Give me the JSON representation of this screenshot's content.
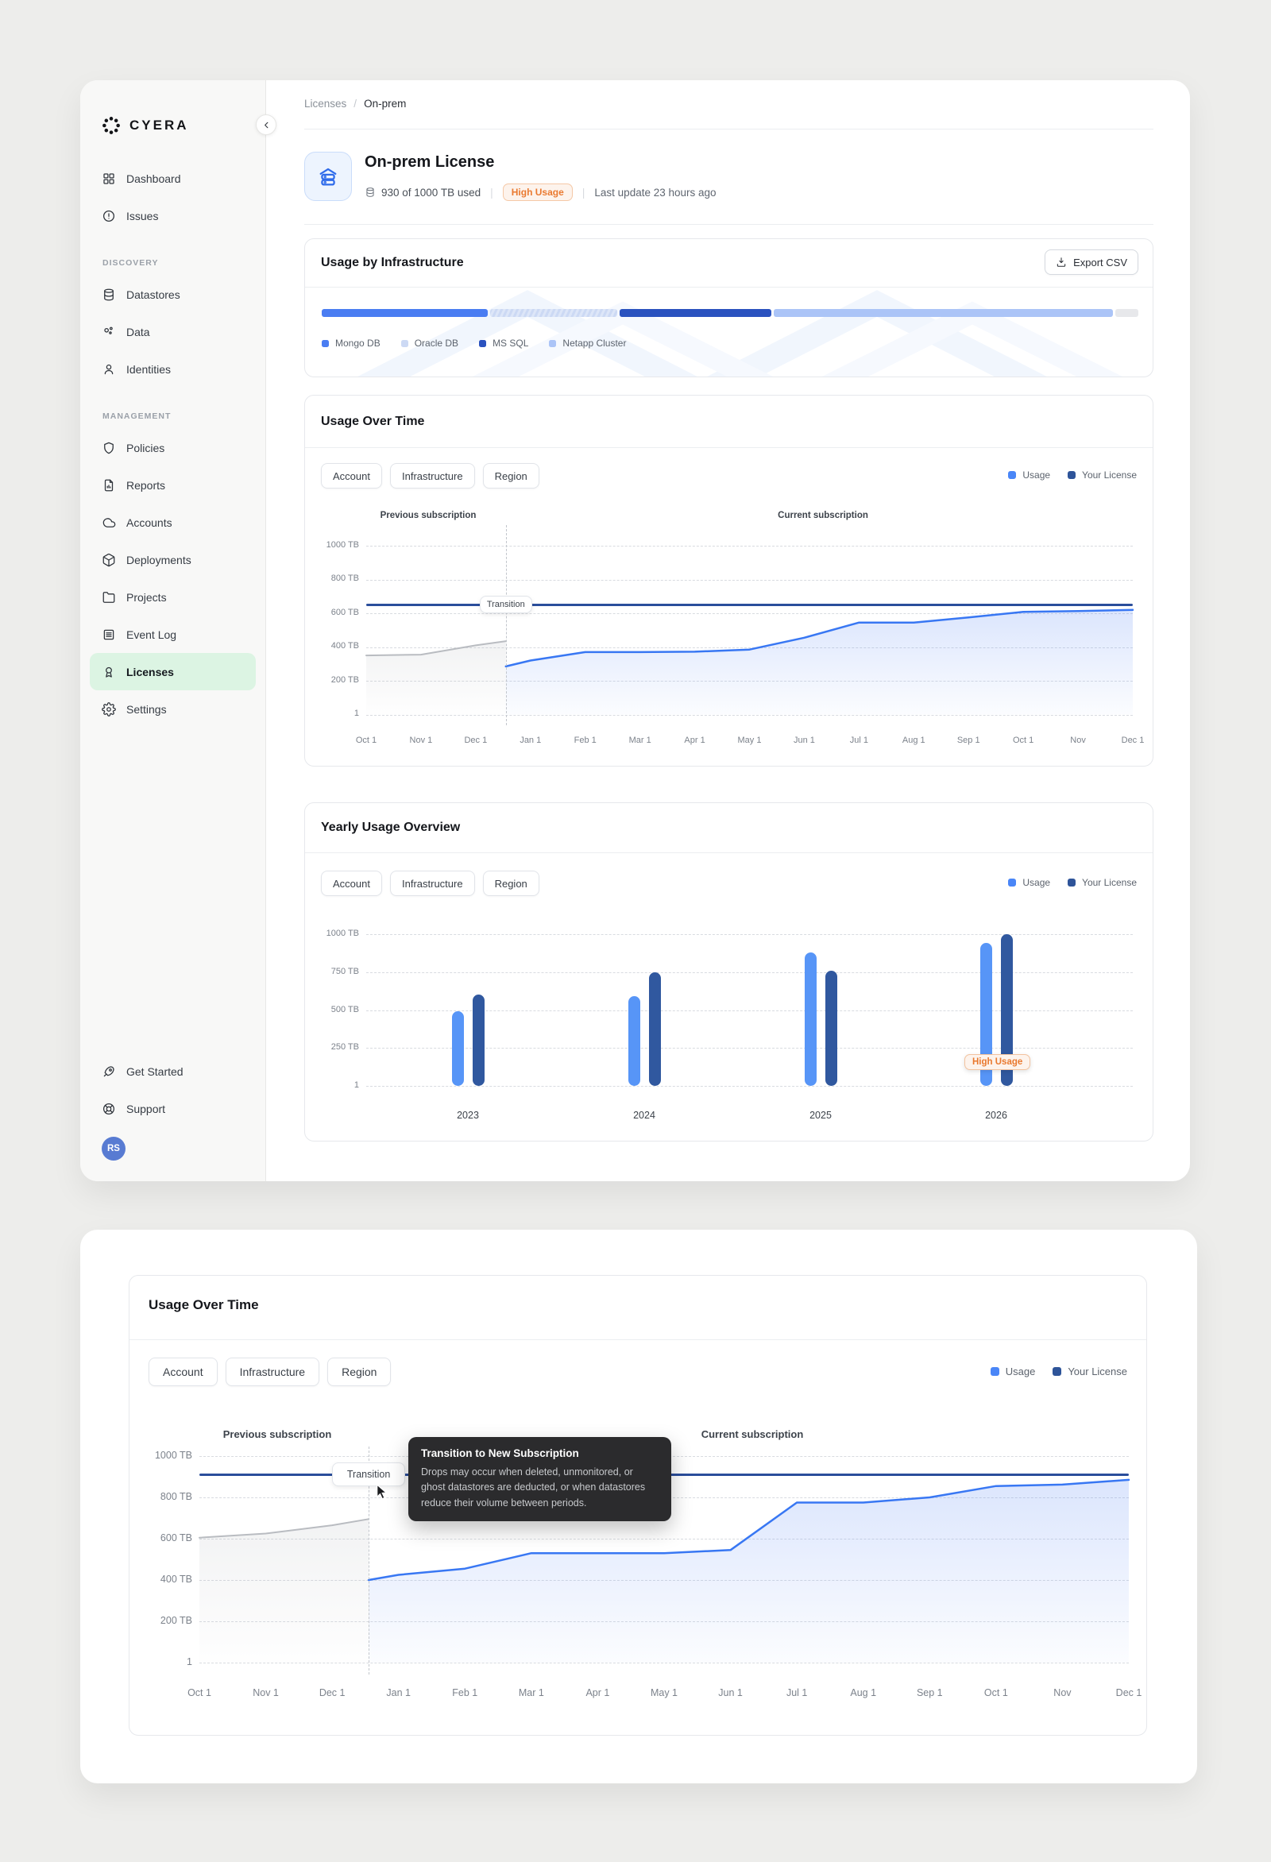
{
  "sidebar": {
    "logo_text": "CYERA",
    "sections": [
      {
        "label": "",
        "items": [
          {
            "icon": "grid-icon",
            "label": "Dashboard"
          },
          {
            "icon": "alert-circle-icon",
            "label": "Issues"
          }
        ]
      },
      {
        "label": "DISCOVERY",
        "items": [
          {
            "icon": "database-icon",
            "label": "Datastores"
          },
          {
            "icon": "scatter-icon",
            "label": "Data"
          },
          {
            "icon": "user-icon",
            "label": "Identities"
          }
        ]
      },
      {
        "label": "MANAGEMENT",
        "items": [
          {
            "icon": "shield-icon",
            "label": "Policies"
          },
          {
            "icon": "report-icon",
            "label": "Reports"
          },
          {
            "icon": "cloud-icon",
            "label": "Accounts"
          },
          {
            "icon": "cube-icon",
            "label": "Deployments"
          },
          {
            "icon": "folder-icon",
            "label": "Projects"
          },
          {
            "icon": "log-icon",
            "label": "Event Log"
          },
          {
            "icon": "award-icon",
            "label": "Licenses",
            "active": true
          },
          {
            "icon": "gear-icon",
            "label": "Settings"
          }
        ]
      }
    ],
    "footer_items": [
      {
        "icon": "rocket-icon",
        "label": "Get Started"
      },
      {
        "icon": "lifebuoy-icon",
        "label": "Support"
      }
    ],
    "avatar_initials": "RS"
  },
  "breadcrumb": {
    "parent": "Licenses",
    "separator": "/",
    "current": "On-prem"
  },
  "header": {
    "title": "On-prem License",
    "usage_summary": "930 of 1000 TB used",
    "badge": "High Usage",
    "last_update": "Last update 23 hours ago"
  },
  "infra_card": {
    "title": "Usage by Infrastructure",
    "export_label": "Export CSV",
    "segments": [
      {
        "label": "Mongo DB",
        "color": "#4a7df2",
        "percent": 20.3,
        "striped": false
      },
      {
        "label": "Oracle DB",
        "color": "#ccd9f4",
        "percent": 15.6,
        "striped": true
      },
      {
        "label": "MS SQL",
        "color": "#2a52bf",
        "percent": 18.6,
        "striped": false
      },
      {
        "label": "Netapp Cluster",
        "color": "#abc4f7",
        "percent": 41.5,
        "striped": false
      }
    ],
    "remainder": {
      "color": "#e7e8eb",
      "percent": 2.8
    }
  },
  "filters": [
    "Account",
    "Infrastructure",
    "Region"
  ],
  "legend": [
    {
      "label": "Usage",
      "color": "#4a86f7"
    },
    {
      "label": "Your License",
      "color": "#2e5499"
    }
  ],
  "cards": {
    "usage_over_time": "Usage Over Time",
    "yearly": "Yearly Usage Overview",
    "detail": "Usage Over Time"
  },
  "colors": {
    "usage_line": "#3877f3",
    "previous_line": "#b9bcc1",
    "license_line": "#2a4d9b",
    "bar_usage": "#5795f7",
    "bar_license": "#30589f",
    "active_nav_bg": "#dcf4e3",
    "badge_orange": "#ea7a31"
  },
  "chart_data": [
    {
      "id": "usage_main",
      "type": "line",
      "title": "Usage Over Time",
      "x_labels": [
        "Oct 1",
        "Nov 1",
        "Dec 1",
        "Jan 1",
        "Feb 1",
        "Mar 1",
        "Apr 1",
        "May 1",
        "Jun 1",
        "Jul 1",
        "Aug 1",
        "Sep 1",
        "Oct 1",
        "Nov",
        "Dec 1"
      ],
      "y_tick_labels": [
        "1000 TB",
        "800 TB",
        "600 TB",
        "400 TB",
        "200 TB",
        "1"
      ],
      "ylim": [
        0,
        1000
      ],
      "grid": true,
      "legend_position": "top-right",
      "license_value": 650,
      "transition_index": 2.55,
      "transition_label": "Transition",
      "region_labels": {
        "previous": "Previous subscription",
        "current": "Current subscription"
      },
      "series": [
        {
          "name": "Previous subscription usage",
          "x": [
            0,
            1,
            2,
            2.55
          ],
          "values": [
            350,
            355,
            410,
            435
          ]
        },
        {
          "name": "Usage",
          "x": [
            2.55,
            3,
            4,
            5,
            6,
            7,
            8,
            9,
            10,
            11,
            12,
            13,
            14
          ],
          "values": [
            285,
            320,
            370,
            370,
            372,
            385,
            455,
            545,
            545,
            575,
            608,
            613,
            620
          ]
        },
        {
          "name": "Your License",
          "values": [
            650
          ]
        }
      ]
    },
    {
      "id": "yearly",
      "type": "bar",
      "title": "Yearly Usage Overview",
      "categories": [
        "2023",
        "2024",
        "2025",
        "2026"
      ],
      "series": [
        {
          "name": "Usage",
          "values": [
            490,
            590,
            880,
            945
          ]
        },
        {
          "name": "Your License",
          "values": [
            600,
            750,
            760,
            1000
          ]
        }
      ],
      "y_tick_labels": [
        "1000 TB",
        "750 TB",
        "500 TB",
        "250 TB",
        "1"
      ],
      "ylim": [
        0,
        1000
      ],
      "grid": true,
      "badge": {
        "label": "High Usage",
        "category": "2026"
      }
    },
    {
      "id": "usage_detail",
      "type": "line",
      "title": "Usage Over Time",
      "x_labels": [
        "Oct 1",
        "Nov 1",
        "Dec 1",
        "Jan 1",
        "Feb 1",
        "Mar 1",
        "Apr 1",
        "May 1",
        "Jun 1",
        "Jul 1",
        "Aug 1",
        "Sep 1",
        "Oct 1",
        "Nov",
        "Dec 1"
      ],
      "y_tick_labels": [
        "1000 TB",
        "800 TB",
        "600 TB",
        "400 TB",
        "200 TB",
        "1"
      ],
      "ylim": [
        0,
        1000
      ],
      "grid": true,
      "license_value": 910,
      "transition_index": 2.55,
      "transition_label": "Transition",
      "region_labels": {
        "previous": "Previous subscription",
        "current": "Current subscription"
      },
      "series": [
        {
          "name": "Previous subscription usage",
          "x": [
            0,
            1,
            2,
            2.55
          ],
          "values": [
            605,
            625,
            665,
            695
          ]
        },
        {
          "name": "Usage",
          "x": [
            2.55,
            3,
            4,
            5,
            6,
            7,
            8,
            9,
            10,
            11,
            12,
            13,
            14
          ],
          "values": [
            400,
            425,
            455,
            530,
            530,
            530,
            545,
            775,
            775,
            800,
            855,
            862,
            885
          ]
        },
        {
          "name": "Your License",
          "values": [
            910
          ]
        }
      ],
      "tooltip": {
        "title": "Transition to New Subscription",
        "body": "Drops may occur when deleted, unmonitored, or ghost datastores are deducted, or when datastores reduce their volume between periods."
      }
    }
  ]
}
